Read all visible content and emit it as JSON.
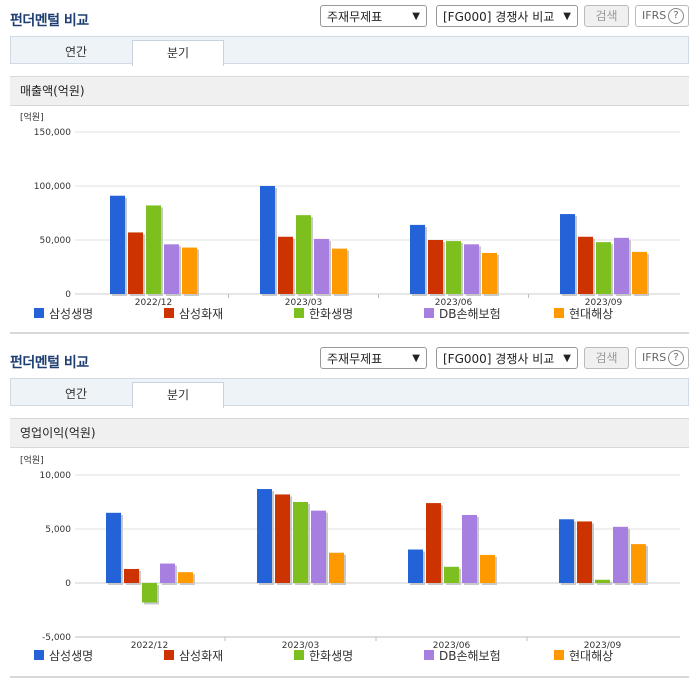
{
  "header": {
    "title": "펀더멘털 비교",
    "select_statement": "주재무제표",
    "select_compare": "[FG000] 경쟁사 비교",
    "search_button": "검색",
    "ifrs_button": "IFRS",
    "help": "?"
  },
  "tabs": [
    "연간",
    "분기"
  ],
  "colors": {
    "삼성생명": "#2462d8",
    "삼성화재": "#cc3300",
    "한화생명": "#7cbf1e",
    "DB손해보험": "#a77fe0",
    "현대해상": "#ff9900"
  },
  "panels": [
    {
      "section_title": "매출액(억원)",
      "chart_data": {
        "type": "bar",
        "unit_label": "[억원]",
        "categories": [
          "2022/12",
          "2023/03",
          "2023/06",
          "2023/09"
        ],
        "ylim": [
          0,
          150000
        ],
        "yticks": [
          "150,000",
          "100,000",
          "50,000",
          "0"
        ],
        "ytick_values": [
          150000,
          100000,
          50000,
          0
        ],
        "series": [
          {
            "name": "삼성생명",
            "values": [
              91000,
              100000,
              64000,
              74000
            ]
          },
          {
            "name": "삼성화재",
            "values": [
              57000,
              53000,
              50000,
              53000
            ]
          },
          {
            "name": "한화생명",
            "values": [
              82000,
              73000,
              49000,
              48000
            ]
          },
          {
            "name": "DB손해보험",
            "values": [
              46000,
              51000,
              46000,
              52000
            ]
          },
          {
            "name": "현대해상",
            "values": [
              43000,
              42000,
              38000,
              39000
            ]
          }
        ],
        "grid": true,
        "legend": "bottom"
      }
    },
    {
      "section_title": "영업이익(억원)",
      "chart_data": {
        "type": "bar",
        "unit_label": "[억원]",
        "categories": [
          "2022/12",
          "2023/03",
          "2023/06",
          "2023/09"
        ],
        "ylim": [
          -5000,
          10000
        ],
        "yticks": [
          "10,000",
          "5,000",
          "0",
          "-5,000"
        ],
        "ytick_values": [
          10000,
          5000,
          0,
          -5000
        ],
        "series": [
          {
            "name": "삼성생명",
            "values": [
              6500,
              8700,
              3100,
              5900
            ]
          },
          {
            "name": "삼성화재",
            "values": [
              1300,
              8200,
              7400,
              5700
            ]
          },
          {
            "name": "한화생명",
            "values": [
              -1800,
              7500,
              1500,
              300
            ]
          },
          {
            "name": "DB손해보험",
            "values": [
              1800,
              6700,
              6300,
              5200
            ]
          },
          {
            "name": "현대해상",
            "values": [
              1000,
              2800,
              2600,
              3600
            ]
          }
        ],
        "grid": true,
        "legend": "bottom"
      }
    }
  ]
}
